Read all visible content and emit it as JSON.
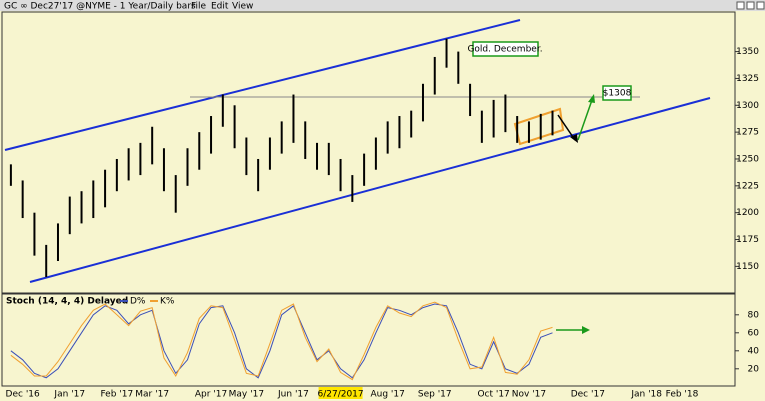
{
  "header": {
    "title": "GC ∞ Dec27'17 @NYME - 1 Year/Daily bars",
    "menu": [
      "File",
      "Edit",
      "View"
    ]
  },
  "chart_data": [
    {
      "type": "ohlc",
      "categories": [
        null,
        "Dec '16",
        null,
        null,
        null,
        "Jan '17",
        null,
        null,
        null,
        "Feb '17",
        null,
        null,
        "Mar '17",
        null,
        null,
        null,
        null,
        "Apr '17",
        null,
        null,
        "May '17",
        null,
        null,
        null,
        "Jun '17",
        null,
        null,
        null,
        "6/27/2017",
        null,
        null,
        null,
        "Aug '17",
        null,
        null,
        null,
        "Sep '17",
        null,
        null,
        null,
        null,
        "Oct '17",
        null,
        null,
        "Nov '17",
        null,
        null,
        null,
        null,
        "Dec '17",
        null,
        null,
        null,
        null,
        "Jan '18",
        null,
        null,
        "Feb '18",
        null,
        null,
        null,
        null
      ],
      "high": [
        1245,
        1230,
        1200,
        1170,
        1190,
        1215,
        1220,
        1230,
        1240,
        1250,
        1260,
        1265,
        1280,
        1260,
        1235,
        1260,
        1275,
        1290,
        1310,
        1300,
        1270,
        1250,
        1270,
        1285,
        1310,
        1285,
        1265,
        1265,
        1250,
        1235,
        1255,
        1270,
        1285,
        1290,
        1295,
        1320,
        1345,
        1362,
        1350,
        1320,
        1295,
        1305,
        1310,
        1290,
        1285,
        1292,
        1295,
        null,
        null,
        null,
        null,
        null,
        null,
        null,
        null,
        null,
        null,
        null,
        null,
        null,
        null,
        null
      ],
      "low": [
        1225,
        1195,
        1160,
        1140,
        1155,
        1180,
        1190,
        1195,
        1205,
        1220,
        1230,
        1235,
        1245,
        1220,
        1200,
        1225,
        1240,
        1255,
        1280,
        1260,
        1235,
        1220,
        1240,
        1255,
        1265,
        1250,
        1240,
        1235,
        1220,
        1210,
        1225,
        1240,
        1255,
        1260,
        1270,
        1285,
        1310,
        1335,
        1320,
        1290,
        1265,
        1270,
        1275,
        1265,
        1265,
        1268,
        1272,
        null,
        null,
        null,
        null,
        null,
        null,
        null,
        null,
        null,
        null,
        null,
        null,
        null,
        null,
        null
      ],
      "color": "#000000",
      "ylim": [
        1128,
        1385
      ],
      "yticks": [
        1150,
        1175,
        1200,
        1225,
        1250,
        1275,
        1300,
        1325,
        1350
      ],
      "annotations": [
        "Gold. December.",
        "$1308"
      ]
    },
    {
      "type": "line",
      "title": "Stoch (14, 4, 4) Delayed",
      "ylim": [
        2,
        102
      ],
      "yticks": [
        20,
        40,
        60,
        80
      ],
      "series": [
        {
          "name": "D%",
          "color": "#3b4fb8",
          "values": [
            40,
            30,
            15,
            10,
            20,
            40,
            60,
            80,
            90,
            85,
            70,
            80,
            85,
            40,
            15,
            30,
            70,
            88,
            90,
            60,
            20,
            10,
            40,
            80,
            90,
            60,
            30,
            40,
            20,
            10,
            30,
            60,
            88,
            85,
            80,
            88,
            92,
            90,
            60,
            25,
            20,
            50,
            20,
            15,
            25,
            55,
            60,
            null,
            null,
            null,
            null,
            null,
            null,
            null,
            null,
            null,
            null,
            null,
            null,
            null,
            null,
            null
          ]
        },
        {
          "name": "K%",
          "color": "#f0a030",
          "values": [
            35,
            25,
            12,
            12,
            28,
            48,
            68,
            85,
            92,
            80,
            68,
            84,
            88,
            32,
            12,
            38,
            76,
            90,
            88,
            52,
            15,
            12,
            48,
            85,
            92,
            55,
            28,
            42,
            16,
            8,
            36,
            66,
            90,
            82,
            78,
            90,
            94,
            88,
            52,
            20,
            22,
            55,
            16,
            14,
            30,
            62,
            66,
            null,
            null,
            null,
            null,
            null,
            null,
            null,
            null,
            null,
            null,
            null,
            null,
            null,
            null,
            null
          ]
        }
      ]
    }
  ]
}
